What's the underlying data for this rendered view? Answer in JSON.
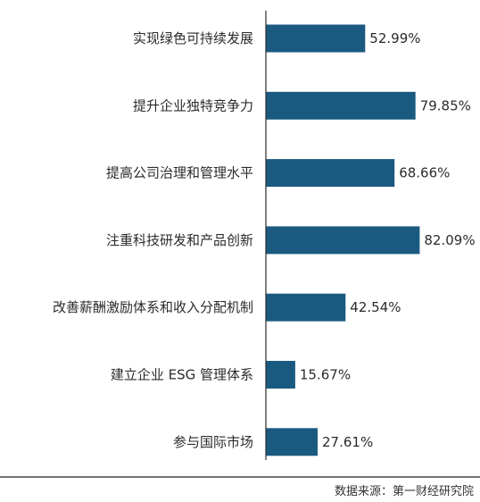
{
  "chart_data": {
    "type": "bar",
    "orientation": "horizontal",
    "categories": [
      "实现绿色可持续发展",
      "提升企业独特竞争力",
      "提高公司治理和管理水平",
      "注重科技研发和产品创新",
      "改善薪酬激励体系和收入分配机制",
      "建立企业 ESG 管理体系",
      "参与国际市场"
    ],
    "values": [
      52.99,
      79.85,
      68.66,
      82.09,
      42.54,
      15.67,
      27.61
    ],
    "value_labels": [
      "52.99%",
      "79.85%",
      "68.66%",
      "82.09%",
      "42.54%",
      "15.67%",
      "27.61%"
    ],
    "bar_color": "#1b5a80",
    "grid": false,
    "legend": "none"
  },
  "source": "数据来源：第一财经研究院"
}
